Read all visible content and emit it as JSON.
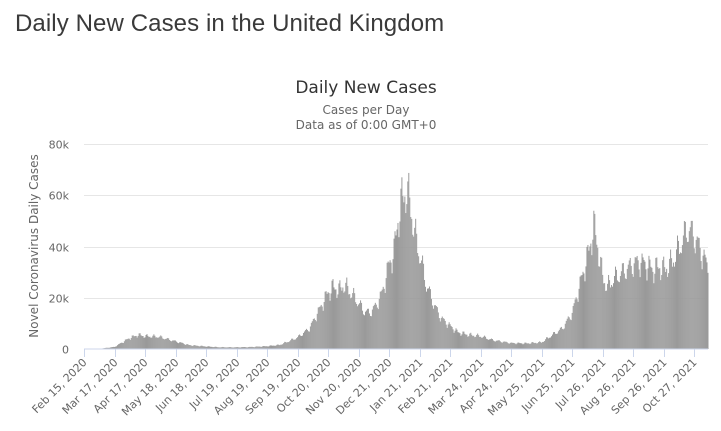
{
  "page": {
    "title": "Daily New Cases in the United Kingdom"
  },
  "chart_data": {
    "type": "bar",
    "title": "Daily New Cases",
    "subtitle": "Cases per Day",
    "subtitle2": "Data as of 0:00 GMT+0",
    "xlabel": "",
    "ylabel": "Novel Coronavirus Daily Cases",
    "ylim": [
      0,
      80000
    ],
    "yticks": [
      0,
      20000,
      40000,
      60000,
      80000
    ],
    "ytick_labels": [
      "0",
      "20k",
      "40k",
      "60k",
      "80k"
    ],
    "x_start": "2020-02-15",
    "x_end": "2021-11-10",
    "xticks": [
      "Feb 15, 2020",
      "Mar 17, 2020",
      "Apr 17, 2020",
      "May 18, 2020",
      "Jun 18, 2020",
      "Jul 19, 2020",
      "Aug 19, 2020",
      "Sep 19, 2020",
      "Oct 20, 2020",
      "Nov 20, 2020",
      "Dec 21, 2020",
      "Jan 21, 2021",
      "Feb 21, 2021",
      "Mar 24, 2021",
      "Apr 24, 2021",
      "May 25, 2021",
      "Jun 25, 2021",
      "Jul 26, 2021",
      "Aug 26, 2021",
      "Sep 26, 2021",
      "Oct 27, 2021"
    ],
    "grid": true,
    "bar_color": "#999999",
    "series": [
      {
        "x": [
          "2020-02-15",
          "2020-03-01",
          "2020-03-17",
          "2020-04-01",
          "2020-04-10",
          "2020-04-17",
          "2020-05-01",
          "2020-05-18",
          "2020-06-01",
          "2020-06-18",
          "2020-07-01",
          "2020-07-19",
          "2020-08-01",
          "2020-08-19",
          "2020-09-01",
          "2020-09-10",
          "2020-09-19",
          "2020-10-01",
          "2020-10-12",
          "2020-10-20",
          "2020-10-25",
          "2020-11-01",
          "2020-11-05",
          "2020-11-12",
          "2020-11-20",
          "2020-11-25",
          "2020-12-01",
          "2020-12-08",
          "2020-12-14",
          "2020-12-21",
          "2020-12-26",
          "2020-12-30",
          "2021-01-03",
          "2021-01-08",
          "2021-01-12",
          "2021-01-16",
          "2021-01-21",
          "2021-01-28",
          "2021-02-05",
          "2021-02-12",
          "2021-02-21",
          "2021-03-01",
          "2021-03-12",
          "2021-03-24",
          "2021-04-05",
          "2021-04-24",
          "2021-05-10",
          "2021-05-25",
          "2021-06-05",
          "2021-06-15",
          "2021-06-25",
          "2021-07-05",
          "2021-07-12",
          "2021-07-17",
          "2021-07-21",
          "2021-07-26",
          "2021-07-31",
          "2021-08-05",
          "2021-08-12",
          "2021-08-19",
          "2021-08-26",
          "2021-09-01",
          "2021-09-08",
          "2021-09-15",
          "2021-09-22",
          "2021-09-26",
          "2021-10-03",
          "2021-10-10",
          "2021-10-17",
          "2021-10-21",
          "2021-10-27",
          "2021-11-03",
          "2021-11-10"
        ],
        "y": [
          0,
          80,
          800,
          4200,
          5500,
          5000,
          4800,
          3000,
          1500,
          1000,
          700,
          650,
          750,
          1100,
          1600,
          3000,
          4500,
          8000,
          16000,
          22000,
          24000,
          23000,
          25000,
          22000,
          18000,
          15000,
          14000,
          17000,
          22000,
          33000,
          38000,
          50000,
          58000,
          62000,
          55000,
          45000,
          37000,
          25000,
          17000,
          12000,
          9000,
          6500,
          5500,
          5000,
          3500,
          2300,
          2200,
          2600,
          5500,
          8000,
          14000,
          28000,
          38000,
          48000,
          40000,
          28000,
          24000,
          27000,
          29000,
          31000,
          33000,
          34000,
          33000,
          31000,
          32000,
          31000,
          33000,
          38000,
          44000,
          47000,
          44000,
          38000,
          32000
        ]
      }
    ]
  }
}
